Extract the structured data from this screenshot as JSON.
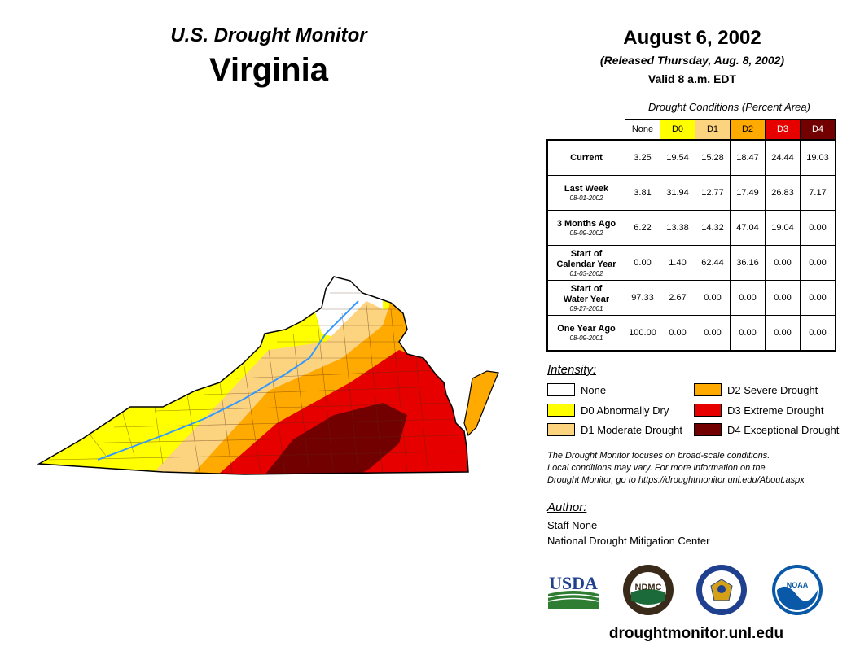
{
  "header": {
    "product": "U.S. Drought Monitor",
    "state": "Virginia",
    "date": "August 6, 2002",
    "released": "(Released Thursday, Aug. 8, 2002)",
    "valid": "Valid 8 a.m. EDT"
  },
  "table": {
    "caption": "Drought Conditions (Percent Area)",
    "columns": [
      "None",
      "D0",
      "D1",
      "D2",
      "D3",
      "D4"
    ],
    "rows": [
      {
        "label": "Current",
        "label2": "",
        "date": "",
        "values": [
          "3.25",
          "19.54",
          "15.28",
          "18.47",
          "24.44",
          "19.03"
        ]
      },
      {
        "label": "Last Week",
        "label2": "",
        "date": "08-01-2002",
        "values": [
          "3.81",
          "31.94",
          "12.77",
          "17.49",
          "26.83",
          "7.17"
        ]
      },
      {
        "label": "3 Months Ago",
        "label2": "",
        "date": "05-09-2002",
        "values": [
          "6.22",
          "13.38",
          "14.32",
          "47.04",
          "19.04",
          "0.00"
        ]
      },
      {
        "label": "Start of",
        "label2": "Calendar Year",
        "date": "01-03-2002",
        "values": [
          "0.00",
          "1.40",
          "62.44",
          "36.16",
          "0.00",
          "0.00"
        ]
      },
      {
        "label": "Start of",
        "label2": "Water Year",
        "date": "09-27-2001",
        "values": [
          "97.33",
          "2.67",
          "0.00",
          "0.00",
          "0.00",
          "0.00"
        ]
      },
      {
        "label": "One Year Ago",
        "label2": "",
        "date": "08-09-2001",
        "values": [
          "100.00",
          "0.00",
          "0.00",
          "0.00",
          "0.00",
          "0.00"
        ]
      }
    ]
  },
  "legend": {
    "title": "Intensity:",
    "items": [
      {
        "label": "None",
        "color": "#ffffff"
      },
      {
        "label": "D0 Abnormally Dry",
        "color": "#ffff00"
      },
      {
        "label": "D1 Moderate Drought",
        "color": "#fcd37f"
      },
      {
        "label": "D2 Severe Drought",
        "color": "#ffaa00"
      },
      {
        "label": "D3 Extreme Drought",
        "color": "#e60000"
      },
      {
        "label": "D4 Exceptional Drought",
        "color": "#730000"
      }
    ]
  },
  "disclaimer": {
    "line1": "The Drought Monitor focuses on broad-scale conditions.",
    "line2": "Local conditions may vary. For more information on the",
    "line3": "Drought Monitor, go to https://droughtmonitor.unl.edu/About.aspx"
  },
  "author": {
    "title": "Author:",
    "name": "Staff None",
    "org": "National Drought Mitigation Center"
  },
  "logos": {
    "usda": "USDA",
    "ndmc": "NDMC",
    "noaa": "NOAA"
  },
  "footer": {
    "url": "droughtmonitor.unl.edu"
  },
  "colors": {
    "none": "#ffffff",
    "d0": "#ffff00",
    "d1": "#fcd37f",
    "d2": "#ffaa00",
    "d3": "#e60000",
    "d4": "#730000",
    "river": "#3399ff"
  }
}
